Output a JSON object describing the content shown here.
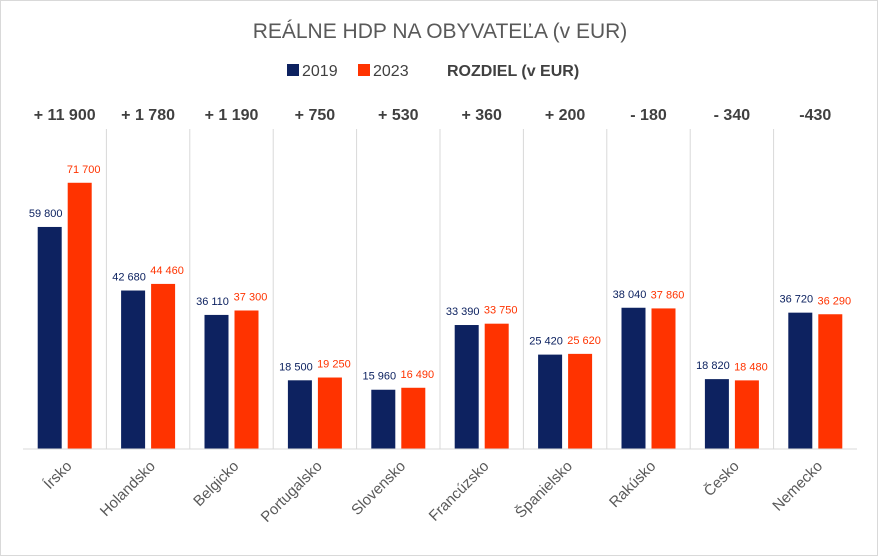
{
  "chart_data": {
    "type": "bar",
    "title": "REÁLNE HDP NA OBYVATEĽA (v EUR)",
    "legend_extra": "ROZDIEL (v EUR)",
    "categories": [
      "Írsko",
      "Holandsko",
      "Belgicko",
      "Portugalsko",
      "Slovensko",
      "Francúzsko",
      "Španielsko",
      "Rakúsko",
      "Česko",
      "Nemecko"
    ],
    "differences": [
      "+ 11 900",
      "+ 1 780",
      "+ 1 190",
      "+ 750",
      "+ 530",
      "+ 360",
      "+ 200",
      "- 180",
      "- 340",
      "-430"
    ],
    "series": [
      {
        "name": "2019",
        "color": "#0d2260",
        "values": [
          59800,
          42680,
          36110,
          18500,
          15960,
          33390,
          25420,
          38040,
          18820,
          36720
        ],
        "labels": [
          "59 800",
          "42 680",
          "36 110",
          "18 500",
          "15 960",
          "33 390",
          "25 420",
          "38 040",
          "18 820",
          "36 720"
        ]
      },
      {
        "name": "2023",
        "color": "#ff3300",
        "values": [
          71700,
          44460,
          37300,
          19250,
          16490,
          33750,
          25620,
          37860,
          18480,
          36290
        ],
        "labels": [
          "71 700",
          "44 460",
          "37 300",
          "19 250",
          "16 490",
          "33 750",
          "25 620",
          "37 860",
          "18 480",
          "36 290"
        ]
      }
    ],
    "legend_position": "top",
    "grid": "vertical separators",
    "ylim": [
      0,
      80000
    ]
  }
}
